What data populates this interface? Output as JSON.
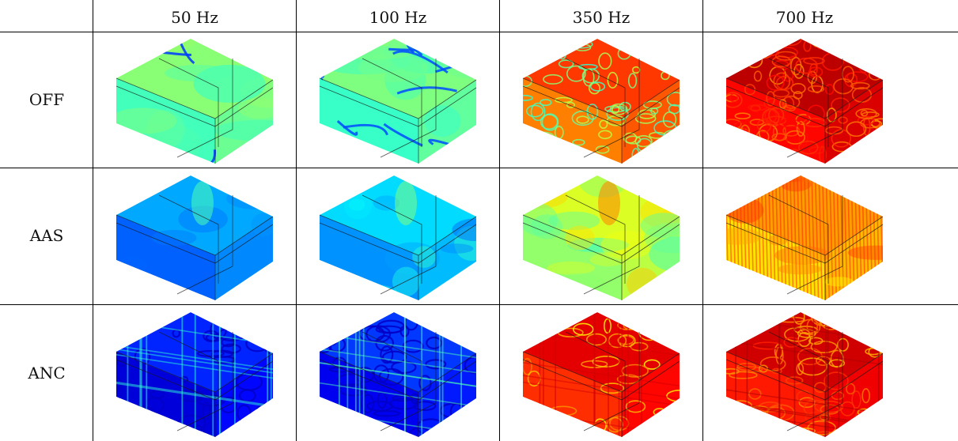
{
  "table": {
    "columns": [
      "50 Hz",
      "100 Hz",
      "350 Hz",
      "700 Hz"
    ],
    "rows": [
      "OFF",
      "AAS",
      "ANC"
    ]
  },
  "colormap": {
    "name": "jet",
    "stops": [
      "#00007f",
      "#0000ff",
      "#007fff",
      "#00ffff",
      "#7fff7f",
      "#ffff00",
      "#ff7f00",
      "#ff0000",
      "#7f0000"
    ]
  },
  "panels": [
    [
      {
        "face": 0.47,
        "low": 0.18,
        "high": 0.52,
        "pattern": "smooth-nodes",
        "density": 2,
        "seed": 3
      },
      {
        "face": 0.46,
        "low": 0.2,
        "high": 0.55,
        "pattern": "smooth-nodes",
        "density": 4,
        "seed": 7
      },
      {
        "face": 0.78,
        "low": 0.42,
        "high": 0.82,
        "pattern": "cells",
        "density": 12,
        "seed": 11
      },
      {
        "face": 0.9,
        "low": 0.72,
        "high": 0.95,
        "pattern": "cells",
        "density": 22,
        "seed": 13
      }
    ],
    [
      {
        "face": 0.25,
        "low": 0.22,
        "high": 0.4,
        "pattern": "gradient",
        "density": 3,
        "seed": 17
      },
      {
        "face": 0.3,
        "low": 0.22,
        "high": 0.45,
        "pattern": "gradient",
        "density": 5,
        "seed": 19
      },
      {
        "face": 0.55,
        "low": 0.4,
        "high": 0.7,
        "pattern": "gradient",
        "density": 10,
        "seed": 23
      },
      {
        "face": 0.68,
        "low": 0.6,
        "high": 0.85,
        "pattern": "stripes",
        "density": 22,
        "seed": 29
      }
    ],
    [
      {
        "face": 0.12,
        "low": 0.05,
        "high": 0.42,
        "pattern": "grid-nodes",
        "density": 8,
        "seed": 31
      },
      {
        "face": 0.14,
        "low": 0.05,
        "high": 0.45,
        "pattern": "grid-nodes",
        "density": 9,
        "seed": 37
      },
      {
        "face": 0.86,
        "low": 0.62,
        "high": 0.92,
        "pattern": "grid-cells",
        "density": 6,
        "seed": 41
      },
      {
        "face": 0.88,
        "low": 0.7,
        "high": 0.96,
        "pattern": "grid-cells",
        "density": 16,
        "seed": 43
      }
    ]
  ]
}
